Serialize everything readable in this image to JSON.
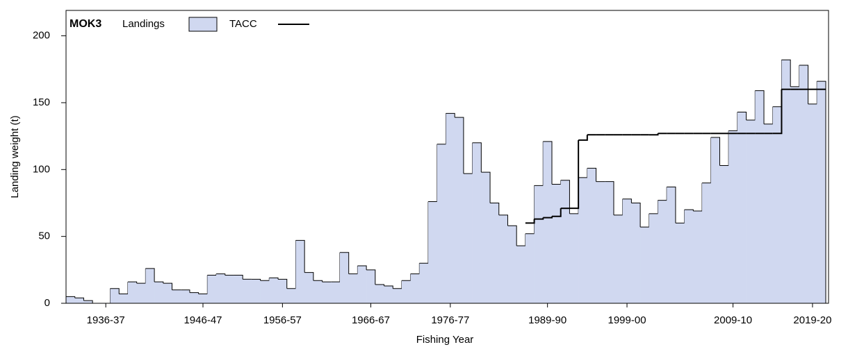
{
  "chart_data": {
    "type": "step-area",
    "title": "MOK3",
    "x_label": "Fishing Year",
    "y_label": "Landing weight (t)",
    "categories": [
      null,
      null,
      null,
      null,
      "1936-37",
      null,
      null,
      null,
      null,
      null,
      null,
      null,
      null,
      null,
      null,
      "1946-47",
      null,
      null,
      null,
      null,
      null,
      null,
      null,
      null,
      "1956-57",
      null,
      null,
      null,
      null,
      null,
      null,
      null,
      null,
      null,
      "1966-67",
      null,
      null,
      null,
      null,
      null,
      null,
      null,
      null,
      "1976-77",
      null,
      null,
      null,
      null,
      null,
      null,
      null,
      null,
      null,
      null,
      "1989-90",
      null,
      null,
      null,
      null,
      null,
      null,
      null,
      null,
      "1999-00",
      null,
      null,
      null,
      null,
      null,
      null,
      null,
      null,
      null,
      null,
      null,
      "2009-10",
      null,
      null,
      null,
      null,
      null,
      null,
      null,
      null,
      "2019-20",
      null
    ],
    "series": [
      {
        "name": "Landings",
        "color": "#d0d8f0",
        "values": [
          5,
          4,
          2,
          0,
          0,
          11,
          7,
          16,
          15,
          26,
          16,
          15,
          10,
          10,
          8,
          7,
          21,
          22,
          21,
          21,
          18,
          18,
          17,
          19,
          18,
          11,
          47,
          23,
          17,
          16,
          16,
          38,
          22,
          28,
          25,
          14,
          13,
          11,
          17,
          22,
          30,
          76,
          119,
          142,
          139,
          97,
          120,
          98,
          75,
          66,
          58,
          43,
          52,
          88,
          121,
          89,
          92,
          67,
          94,
          101,
          91,
          91,
          66,
          78,
          75,
          57,
          67,
          77,
          87,
          60,
          70,
          69,
          90,
          124,
          103,
          129,
          143,
          137,
          159,
          134,
          147,
          182,
          162,
          178,
          149,
          166
        ]
      },
      {
        "name": "TACC",
        "color": "#000000",
        "values": [
          null,
          null,
          null,
          null,
          null,
          null,
          null,
          null,
          null,
          null,
          null,
          null,
          null,
          null,
          null,
          null,
          null,
          null,
          null,
          null,
          null,
          null,
          null,
          null,
          null,
          null,
          null,
          null,
          null,
          null,
          null,
          null,
          null,
          null,
          null,
          null,
          null,
          null,
          null,
          null,
          null,
          null,
          null,
          null,
          null,
          null,
          null,
          null,
          null,
          null,
          null,
          null,
          60,
          63,
          64,
          65,
          71,
          71,
          122,
          126,
          126,
          126,
          126,
          126,
          126,
          126,
          126,
          127,
          127,
          127,
          127,
          127,
          127,
          127,
          127,
          127,
          127,
          127,
          127,
          127,
          127,
          160,
          160,
          160,
          160,
          160
        ]
      }
    ],
    "ylim": [
      0,
      219
    ],
    "yticks": [
      0,
      50,
      100,
      150,
      200
    ]
  }
}
